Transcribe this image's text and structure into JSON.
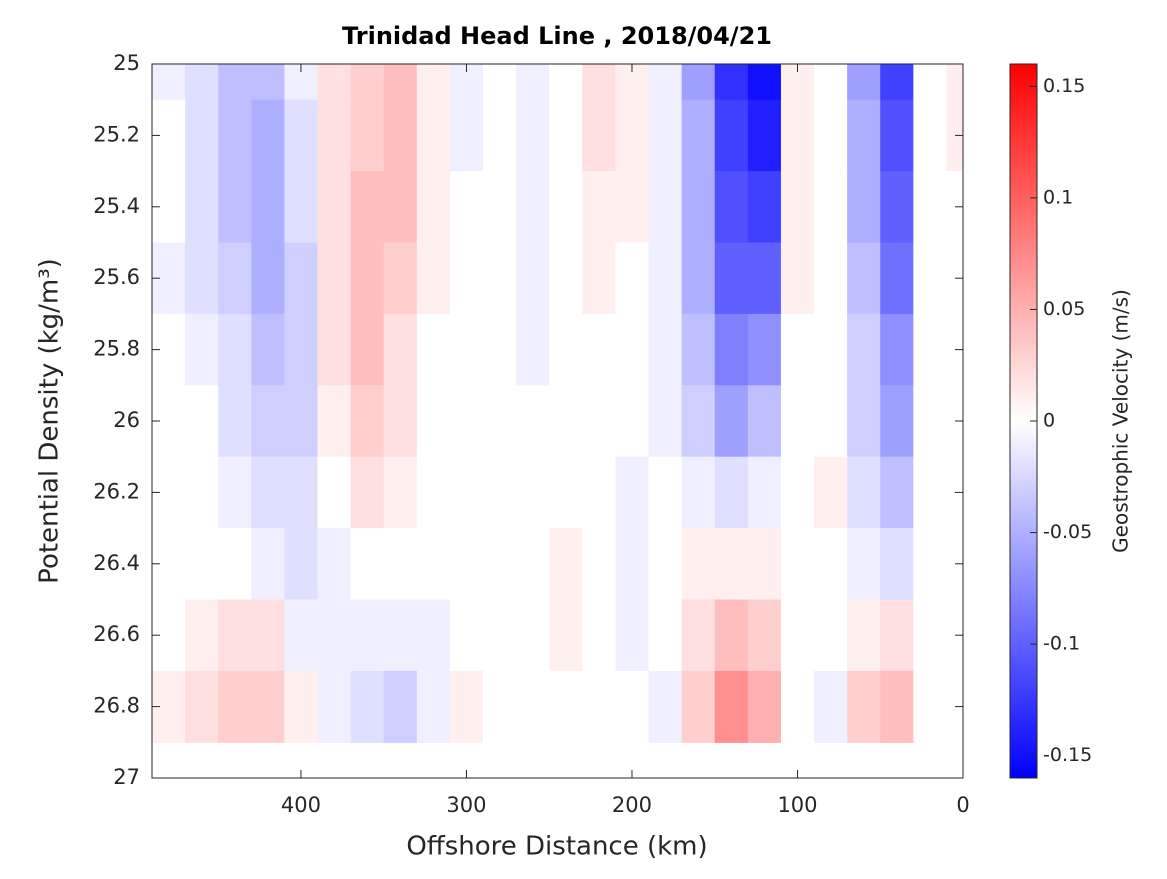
{
  "chart_data": {
    "type": "contour",
    "title": "Trinidad Head Line , 2018/04/21",
    "xlabel": "Offshore Distance (km)",
    "ylabel": "Potential Density (kg/m³)",
    "xlim": [
      490,
      0
    ],
    "xticks": [
      400,
      300,
      200,
      100,
      0
    ],
    "ylim": [
      27,
      25
    ],
    "yticks": [
      25,
      25.2,
      25.4,
      25.6,
      25.8,
      26,
      26.2,
      26.4,
      26.6,
      26.8,
      27
    ],
    "x": [
      480,
      460,
      440,
      420,
      400,
      380,
      360,
      340,
      320,
      300,
      280,
      260,
      240,
      220,
      200,
      180,
      160,
      140,
      120,
      100,
      80,
      60,
      40,
      20,
      0
    ],
    "y": [
      25,
      25.2,
      25.4,
      25.6,
      25.8,
      26,
      26.2,
      26.4,
      26.6,
      26.8
    ],
    "z": [
      [
        -0.01,
        -0.02,
        -0.04,
        -0.04,
        -0.01,
        0.02,
        0.03,
        0.04,
        0.01,
        -0.01,
        0,
        -0.01,
        0,
        0.02,
        0.01,
        -0.01,
        -0.06,
        -0.13,
        -0.15,
        0.01,
        0,
        -0.06,
        -0.12,
        0,
        0.01
      ],
      [
        0,
        -0.02,
        -0.04,
        -0.05,
        -0.02,
        0.02,
        0.03,
        0.04,
        0.01,
        -0.01,
        0,
        -0.01,
        0,
        0.02,
        0.01,
        -0.01,
        -0.05,
        -0.12,
        -0.14,
        0.01,
        0,
        -0.05,
        -0.11,
        0,
        0.01
      ],
      [
        0,
        -0.02,
        -0.04,
        -0.05,
        -0.02,
        0.02,
        0.04,
        0.04,
        0.01,
        0,
        0,
        -0.01,
        0,
        0.01,
        0.01,
        -0.01,
        -0.05,
        -0.11,
        -0.12,
        0.01,
        0,
        -0.05,
        -0.1,
        0,
        0
      ],
      [
        -0.01,
        -0.02,
        -0.03,
        -0.05,
        -0.03,
        0.02,
        0.04,
        0.03,
        0.01,
        0,
        0,
        -0.01,
        0,
        0.01,
        0,
        -0.01,
        -0.05,
        -0.1,
        -0.1,
        0.01,
        0,
        -0.04,
        -0.09,
        0,
        0
      ],
      [
        0,
        -0.01,
        -0.02,
        -0.04,
        -0.03,
        0.02,
        0.04,
        0.02,
        0,
        0,
        0,
        -0.01,
        0,
        0,
        0,
        -0.01,
        -0.04,
        -0.08,
        -0.07,
        0,
        0,
        -0.03,
        -0.07,
        0,
        0
      ],
      [
        0,
        0,
        -0.02,
        -0.03,
        -0.03,
        0.01,
        0.03,
        0.02,
        0,
        0,
        0,
        0,
        0,
        0,
        0,
        -0.01,
        -0.03,
        -0.06,
        -0.04,
        0,
        0,
        -0.03,
        -0.06,
        0,
        0
      ],
      [
        0,
        0,
        -0.01,
        -0.02,
        -0.02,
        0,
        0.02,
        0.01,
        0,
        0,
        0,
        0,
        0,
        0,
        -0.01,
        0,
        -0.01,
        -0.02,
        -0.01,
        0,
        0.01,
        -0.02,
        -0.04,
        0,
        0
      ],
      [
        0,
        0,
        0,
        -0.01,
        -0.02,
        -0.01,
        0,
        0,
        0,
        0,
        0,
        0,
        0.01,
        0,
        -0.01,
        0,
        0.01,
        0.01,
        0.01,
        0,
        0,
        -0.01,
        -0.02,
        0,
        0
      ],
      [
        0,
        0.01,
        0.02,
        0.02,
        -0.01,
        -0.01,
        -0.01,
        -0.01,
        -0.01,
        0,
        0,
        0,
        0.01,
        0,
        -0.01,
        0,
        0.02,
        0.04,
        0.03,
        0,
        0,
        0.01,
        0.02,
        0,
        0
      ],
      [
        0.01,
        0.02,
        0.03,
        0.03,
        0.01,
        -0.01,
        -0.02,
        -0.03,
        -0.01,
        0.01,
        0,
        0,
        0,
        0,
        0,
        -0.01,
        0.03,
        0.07,
        0.05,
        0,
        -0.01,
        0.03,
        0.04,
        0,
        0
      ]
    ],
    "colorbar": {
      "label": "Geostrophic Velocity (m/s)",
      "lim": [
        -0.16,
        0.16
      ],
      "ticks": [
        -0.15,
        -0.1,
        -0.05,
        0,
        0.05,
        0.1,
        0.15
      ],
      "colors": [
        "#0000ff",
        "#ffffff",
        "#ff0000"
      ]
    }
  }
}
